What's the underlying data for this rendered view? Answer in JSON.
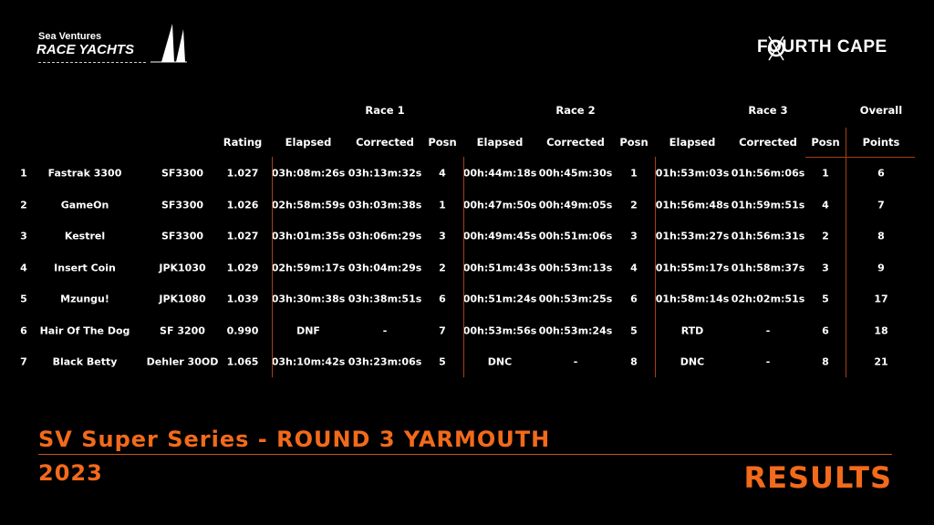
{
  "logo_left": {
    "line1": "Sea Ventures",
    "line2": "RACE YACHTS"
  },
  "logo_right": {
    "text": "FOURTH CAPE"
  },
  "table": {
    "race_headers": [
      "Race 1",
      "Race 2",
      "Race 3",
      "Overall"
    ],
    "columns": [
      "Rating",
      "Elapsed",
      "Corrected",
      "Posn",
      "Elapsed",
      "Corrected",
      "Posn",
      "Elapsed",
      "Corrected",
      "Posn",
      "Points"
    ],
    "rows": [
      [
        "1",
        "Fastrak 3300",
        "SF3300",
        "1.027",
        "03h:08m:26s",
        "03h:13m:32s",
        "4",
        "00h:44m:18s",
        "00h:45m:30s",
        "1",
        "01h:53m:03s",
        "01h:56m:06s",
        "1",
        "6"
      ],
      [
        "2",
        "GameOn",
        "SF3300",
        "1.026",
        "02h:58m:59s",
        "03h:03m:38s",
        "1",
        "00h:47m:50s",
        "00h:49m:05s",
        "2",
        "01h:56m:48s",
        "01h:59m:51s",
        "4",
        "7"
      ],
      [
        "3",
        "Kestrel",
        "SF3300",
        "1.027",
        "03h:01m:35s",
        "03h:06m:29s",
        "3",
        "00h:49m:45s",
        "00h:51m:06s",
        "3",
        "01h:53m:27s",
        "01h:56m:31s",
        "2",
        "8"
      ],
      [
        "4",
        "Insert Coin",
        "JPK1030",
        "1.029",
        "02h:59m:17s",
        "03h:04m:29s",
        "2",
        "00h:51m:43s",
        "00h:53m:13s",
        "4",
        "01h:55m:17s",
        "01h:58m:37s",
        "3",
        "9"
      ],
      [
        "5",
        "Mzungu!",
        "JPK1080",
        "1.039",
        "03h:30m:38s",
        "03h:38m:51s",
        "6",
        "00h:51m:24s",
        "00h:53m:25s",
        "6",
        "01h:58m:14s",
        "02h:02m:51s",
        "5",
        "17"
      ],
      [
        "6",
        "Hair Of The Dog",
        "SF 3200",
        "0.990",
        "DNF",
        "-",
        "7",
        "00h:53m:56s",
        "00h:53m:24s",
        "5",
        "RTD",
        "-",
        "6",
        "18"
      ],
      [
        "7",
        "Black Betty",
        "Dehler 30OD",
        "1.065",
        "03h:10m:42s",
        "03h:23m:06s",
        "5",
        "DNC",
        "-",
        "8",
        "DNC",
        "-",
        "8",
        "21"
      ]
    ]
  },
  "footer": {
    "title": "SV Super Series - ROUND 3 YARMOUTH",
    "year": "2023",
    "results": "RESULTS"
  },
  "colors": {
    "accent": "#f26a1b",
    "divider": "#a8400f",
    "background": "#000000"
  }
}
